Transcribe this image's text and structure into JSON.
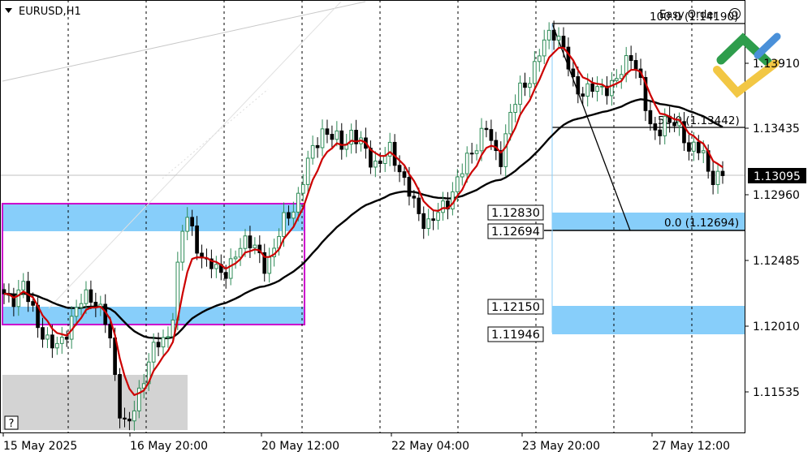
{
  "header": {
    "symbol_label": "EURUSD,H1",
    "easy_order_label": "Easy Order"
  },
  "axis": {
    "price_labels": [
      "1.13910",
      "1.13435",
      "1.12960",
      "1.12485",
      "1.12010",
      "1.11535"
    ],
    "time_labels": [
      "15 May 2025",
      "16 May 20:00",
      "20 May 12:00",
      "22 May 04:00",
      "23 May 20:00",
      "27 May 12:00"
    ],
    "current_price": "1.13095"
  },
  "fibonacci": {
    "level_100": "100.0 (1.14190)",
    "level_50": "50.0 (1.13442)",
    "level_0": "0.0 (1.12694)"
  },
  "price_tags": [
    "1.12830",
    "1.12694",
    "1.12150",
    "1.11946"
  ],
  "help_label": "?",
  "chart_data": {
    "type": "candlestick",
    "title": "EURUSD,H1",
    "symbol": "EURUSD",
    "timeframe": "H1",
    "y_ticks": [
      1.1391,
      1.13435,
      1.1296,
      1.12485,
      1.1201,
      1.11535
    ],
    "ylim": [
      1.1125,
      1.143
    ],
    "x_ticks": [
      "15 May 2025",
      "16 May 20:00",
      "20 May 12:00",
      "22 May 04:00",
      "23 May 20:00",
      "27 May 12:00"
    ],
    "current_price": 1.13095,
    "moving_averages": [
      {
        "name": "short",
        "color": "#cc0000"
      },
      {
        "name": "long",
        "color": "#000000"
      }
    ],
    "fibonacci_levels": [
      {
        "level": 100.0,
        "price": 1.1419
      },
      {
        "level": 50.0,
        "price": 1.13442
      },
      {
        "level": 0.0,
        "price": 1.12694
      }
    ],
    "zones": [
      {
        "from": 1.1273,
        "to": 1.1289,
        "color": "#87cefa"
      },
      {
        "from": 1.1202,
        "to": 1.1214,
        "color": "#87cefa"
      },
      {
        "from": 1.1269,
        "to": 1.1283,
        "color": "#87cefa"
      },
      {
        "from": 1.1195,
        "to": 1.1215,
        "color": "#87cefa"
      }
    ],
    "colors": {
      "bull": "#2e8b57",
      "bear": "#000000",
      "zone": "#87cefa",
      "box_border": "#cc00cc",
      "gray_zone": "#d3d3d3"
    },
    "price_path": [
      1.1222,
      1.1219,
      1.1225,
      1.1232,
      1.1215,
      1.1205,
      1.1195,
      1.1188,
      1.1185,
      1.1192,
      1.1203,
      1.1212,
      1.122,
      1.1225,
      1.1218,
      1.121,
      1.1198,
      1.1165,
      1.1132,
      1.1128,
      1.1142,
      1.1158,
      1.1175,
      1.1185,
      1.119,
      1.1192,
      1.1215,
      1.1262,
      1.1282,
      1.1268,
      1.1252,
      1.1244,
      1.1246,
      1.1242,
      1.124,
      1.1245,
      1.1258,
      1.1265,
      1.1262,
      1.125,
      1.1242,
      1.1255,
      1.1268,
      1.1278,
      1.1282,
      1.1295,
      1.1312,
      1.1325,
      1.1335,
      1.1345,
      1.1338,
      1.1335,
      1.133,
      1.1342,
      1.1336,
      1.133,
      1.1322,
      1.1318,
      1.1322,
      1.1328,
      1.132,
      1.131,
      1.1298,
      1.1285,
      1.1278,
      1.1276,
      1.128,
      1.1285,
      1.1292,
      1.1303,
      1.1312,
      1.1322,
      1.133,
      1.134,
      1.1345,
      1.1325,
      1.1322,
      1.1345,
      1.136,
      1.1372,
      1.1378,
      1.1385,
      1.1398,
      1.141,
      1.1416,
      1.1408,
      1.1395,
      1.1378,
      1.1372,
      1.137,
      1.1372,
      1.1373,
      1.1374,
      1.1375,
      1.1378,
      1.1392,
      1.1398,
      1.1385,
      1.1362,
      1.1345,
      1.1342,
      1.1348,
      1.1346,
      1.135,
      1.134,
      1.1325,
      1.133,
      1.1328,
      1.131,
      1.1306,
      1.1309
    ]
  }
}
